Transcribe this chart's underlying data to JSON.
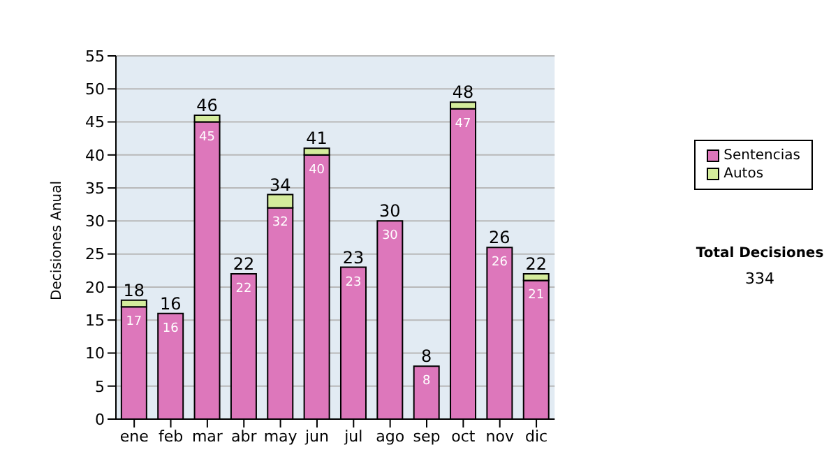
{
  "chart_data": {
    "type": "bar",
    "stacked": true,
    "categories": [
      "ene",
      "feb",
      "mar",
      "abr",
      "may",
      "jun",
      "jul",
      "ago",
      "sep",
      "oct",
      "nov",
      "dic"
    ],
    "series": [
      {
        "name": "Sentencias",
        "color": "#dd77bb",
        "values": [
          17,
          16,
          45,
          22,
          32,
          40,
          23,
          30,
          8,
          47,
          26,
          21
        ],
        "value_labels": [
          "17",
          "16",
          "45",
          "22",
          "32",
          "40",
          "23",
          "30",
          "8",
          "47",
          "26",
          "21"
        ]
      },
      {
        "name": "Autos",
        "color": "#d4ec9c",
        "values": [
          1,
          0,
          1,
          0,
          2,
          1,
          0,
          0,
          0,
          1,
          0,
          1
        ]
      }
    ],
    "totals": [
      "18",
      "16",
      "46",
      "22",
      "34",
      "41",
      "23",
      "30",
      "8",
      "48",
      "26",
      "22"
    ],
    "ylabel": "Decisiones Anual",
    "ylim": [
      0,
      55
    ],
    "yticks": [
      0,
      5,
      10,
      15,
      20,
      25,
      30,
      35,
      40,
      45,
      50,
      55
    ],
    "grid": "y",
    "legend": "right",
    "annotations": [
      "Total Decisiones",
      "334"
    ]
  }
}
